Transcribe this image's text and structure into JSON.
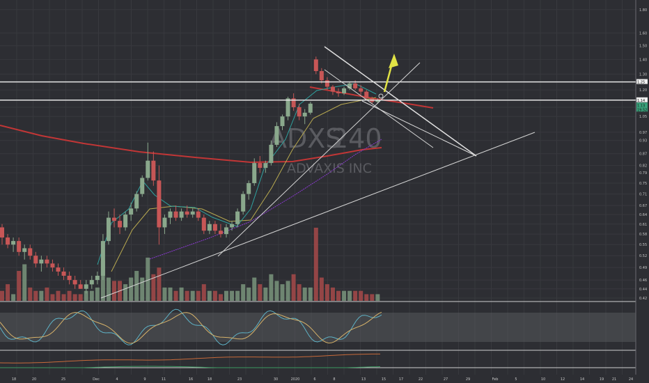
{
  "chart_data": {
    "type": "candlestick",
    "symbol": "ADXS",
    "interval": "240",
    "company": "ADVAXIS INC",
    "x_tick_labels": [
      "18",
      "20",
      "25",
      "Dec",
      "4",
      "9",
      "11",
      "16",
      "18",
      "23",
      "30",
      "2020",
      "6",
      "8",
      "13",
      "15",
      "17",
      "22",
      "27",
      "29",
      "Feb",
      "5",
      "10",
      "12",
      "14",
      "19",
      "21",
      "24"
    ],
    "y_tick_labels": [
      "1.80",
      "1.60",
      "1.50",
      "1.40",
      "1.30",
      "1.20",
      "1.10",
      "1.05",
      "0.97",
      "0.93",
      "0.87",
      "0.82",
      "0.79",
      "0.75",
      "0.71",
      "0.67",
      "0.64",
      "0.61",
      "0.58",
      "0.55",
      "0.52",
      "0.49",
      "0.46",
      "0.44",
      "0.42"
    ],
    "price_badges": [
      "1.25",
      "1.14",
      "1.13",
      "19.52"
    ],
    "ylim": [
      0.42,
      1.85
    ],
    "y_scale": "log",
    "candles": [
      {
        "o": 0.6,
        "h": 0.61,
        "l": 0.55,
        "c": 0.57
      },
      {
        "o": 0.57,
        "h": 0.58,
        "l": 0.54,
        "c": 0.55
      },
      {
        "o": 0.55,
        "h": 0.57,
        "l": 0.53,
        "c": 0.56
      },
      {
        "o": 0.56,
        "h": 0.57,
        "l": 0.52,
        "c": 0.53
      },
      {
        "o": 0.53,
        "h": 0.55,
        "l": 0.51,
        "c": 0.54
      },
      {
        "o": 0.54,
        "h": 0.55,
        "l": 0.51,
        "c": 0.52
      },
      {
        "o": 0.52,
        "h": 0.53,
        "l": 0.49,
        "c": 0.5
      },
      {
        "o": 0.5,
        "h": 0.52,
        "l": 0.48,
        "c": 0.51
      },
      {
        "o": 0.51,
        "h": 0.52,
        "l": 0.49,
        "c": 0.5
      },
      {
        "o": 0.5,
        "h": 0.51,
        "l": 0.48,
        "c": 0.49
      },
      {
        "o": 0.49,
        "h": 0.5,
        "l": 0.47,
        "c": 0.48
      },
      {
        "o": 0.48,
        "h": 0.49,
        "l": 0.46,
        "c": 0.47
      },
      {
        "o": 0.47,
        "h": 0.48,
        "l": 0.45,
        "c": 0.46
      },
      {
        "o": 0.46,
        "h": 0.47,
        "l": 0.44,
        "c": 0.45
      },
      {
        "o": 0.45,
        "h": 0.46,
        "l": 0.44,
        "c": 0.44
      },
      {
        "o": 0.44,
        "h": 0.46,
        "l": 0.43,
        "c": 0.45
      },
      {
        "o": 0.45,
        "h": 0.47,
        "l": 0.44,
        "c": 0.46
      },
      {
        "o": 0.46,
        "h": 0.48,
        "l": 0.45,
        "c": 0.47
      },
      {
        "o": 0.47,
        "h": 0.58,
        "l": 0.46,
        "c": 0.56
      },
      {
        "o": 0.56,
        "h": 0.65,
        "l": 0.55,
        "c": 0.63
      },
      {
        "o": 0.63,
        "h": 0.66,
        "l": 0.6,
        "c": 0.62
      },
      {
        "o": 0.62,
        "h": 0.64,
        "l": 0.58,
        "c": 0.6
      },
      {
        "o": 0.6,
        "h": 0.65,
        "l": 0.59,
        "c": 0.64
      },
      {
        "o": 0.64,
        "h": 0.68,
        "l": 0.62,
        "c": 0.66
      },
      {
        "o": 0.66,
        "h": 0.72,
        "l": 0.65,
        "c": 0.71
      },
      {
        "o": 0.71,
        "h": 0.78,
        "l": 0.7,
        "c": 0.77
      },
      {
        "o": 0.77,
        "h": 0.92,
        "l": 0.76,
        "c": 0.84
      },
      {
        "o": 0.84,
        "h": 0.88,
        "l": 0.74,
        "c": 0.76
      },
      {
        "o": 0.76,
        "h": 0.82,
        "l": 0.55,
        "c": 0.6
      },
      {
        "o": 0.6,
        "h": 0.64,
        "l": 0.58,
        "c": 0.63
      },
      {
        "o": 0.63,
        "h": 0.66,
        "l": 0.61,
        "c": 0.65
      },
      {
        "o": 0.65,
        "h": 0.67,
        "l": 0.62,
        "c": 0.63
      },
      {
        "o": 0.63,
        "h": 0.66,
        "l": 0.62,
        "c": 0.65
      },
      {
        "o": 0.65,
        "h": 0.67,
        "l": 0.63,
        "c": 0.64
      },
      {
        "o": 0.64,
        "h": 0.66,
        "l": 0.63,
        "c": 0.65
      },
      {
        "o": 0.65,
        "h": 0.66,
        "l": 0.62,
        "c": 0.63
      },
      {
        "o": 0.63,
        "h": 0.64,
        "l": 0.58,
        "c": 0.59
      },
      {
        "o": 0.59,
        "h": 0.62,
        "l": 0.58,
        "c": 0.61
      },
      {
        "o": 0.61,
        "h": 0.62,
        "l": 0.58,
        "c": 0.59
      },
      {
        "o": 0.59,
        "h": 0.61,
        "l": 0.57,
        "c": 0.58
      },
      {
        "o": 0.58,
        "h": 0.61,
        "l": 0.57,
        "c": 0.6
      },
      {
        "o": 0.6,
        "h": 0.62,
        "l": 0.59,
        "c": 0.61
      },
      {
        "o": 0.61,
        "h": 0.66,
        "l": 0.6,
        "c": 0.65
      },
      {
        "o": 0.65,
        "h": 0.72,
        "l": 0.64,
        "c": 0.71
      },
      {
        "o": 0.71,
        "h": 0.76,
        "l": 0.69,
        "c": 0.75
      },
      {
        "o": 0.75,
        "h": 0.85,
        "l": 0.74,
        "c": 0.83
      },
      {
        "o": 0.83,
        "h": 0.86,
        "l": 0.79,
        "c": 0.81
      },
      {
        "o": 0.81,
        "h": 0.84,
        "l": 0.79,
        "c": 0.83
      },
      {
        "o": 0.83,
        "h": 0.93,
        "l": 0.82,
        "c": 0.91
      },
      {
        "o": 0.91,
        "h": 1.02,
        "l": 0.9,
        "c": 1.0
      },
      {
        "o": 1.0,
        "h": 1.06,
        "l": 0.98,
        "c": 1.05
      },
      {
        "o": 1.05,
        "h": 1.16,
        "l": 1.03,
        "c": 1.15
      },
      {
        "o": 1.15,
        "h": 1.18,
        "l": 1.08,
        "c": 1.1
      },
      {
        "o": 1.1,
        "h": 1.12,
        "l": 1.03,
        "c": 1.05
      },
      {
        "o": 1.05,
        "h": 1.09,
        "l": 1.01,
        "c": 1.07
      },
      {
        "o": 1.07,
        "h": 1.13,
        "l": 1.06,
        "c": 1.12
      },
      {
        "o": 1.4,
        "h": 1.42,
        "l": 1.3,
        "c": 1.32
      },
      {
        "o": 1.32,
        "h": 1.34,
        "l": 1.24,
        "c": 1.26
      },
      {
        "o": 1.26,
        "h": 1.28,
        "l": 1.2,
        "c": 1.22
      },
      {
        "o": 1.22,
        "h": 1.23,
        "l": 1.17,
        "c": 1.19
      },
      {
        "o": 1.19,
        "h": 1.21,
        "l": 1.16,
        "c": 1.18
      },
      {
        "o": 1.18,
        "h": 1.22,
        "l": 1.17,
        "c": 1.21
      },
      {
        "o": 1.21,
        "h": 1.25,
        "l": 1.2,
        "c": 1.24
      },
      {
        "o": 1.24,
        "h": 1.26,
        "l": 1.2,
        "c": 1.21
      },
      {
        "o": 1.21,
        "h": 1.23,
        "l": 1.17,
        "c": 1.19
      },
      {
        "o": 1.19,
        "h": 1.2,
        "l": 1.14,
        "c": 1.15
      },
      {
        "o": 1.15,
        "h": 1.16,
        "l": 1.12,
        "c": 1.13
      },
      {
        "o": 1.13,
        "h": 1.15,
        "l": 1.12,
        "c": 1.14
      }
    ],
    "volumes": [
      3,
      5,
      2,
      9,
      11,
      4,
      3,
      3,
      4,
      2,
      3,
      2,
      3,
      2,
      2,
      3,
      3,
      4,
      12,
      7,
      6,
      6,
      5,
      7,
      9,
      7,
      13,
      8,
      10,
      4,
      4,
      3,
      4,
      3,
      3,
      3,
      5,
      3,
      3,
      2,
      3,
      3,
      3,
      5,
      4,
      7,
      5,
      4,
      8,
      6,
      5,
      6,
      8,
      5,
      4,
      4,
      22,
      7,
      5,
      4,
      3,
      3,
      3,
      3,
      3,
      2,
      2,
      2
    ],
    "indicators": [
      "MA short",
      "MA mid",
      "MA long",
      "MA 200",
      "Stochastic RSI",
      "Oscillator"
    ],
    "colors": {
      "up": "#8aa88c",
      "down": "#c75656",
      "ma200": "#c23636",
      "ma_short": "#2fa3a0",
      "ma_mid": "#b9aa50",
      "ma_long": "#8a3ad0",
      "trendline": "#d6d6d6",
      "arrow": "#e1e345",
      "background": "#2d2e33"
    },
    "grid": true,
    "legend": "none"
  }
}
